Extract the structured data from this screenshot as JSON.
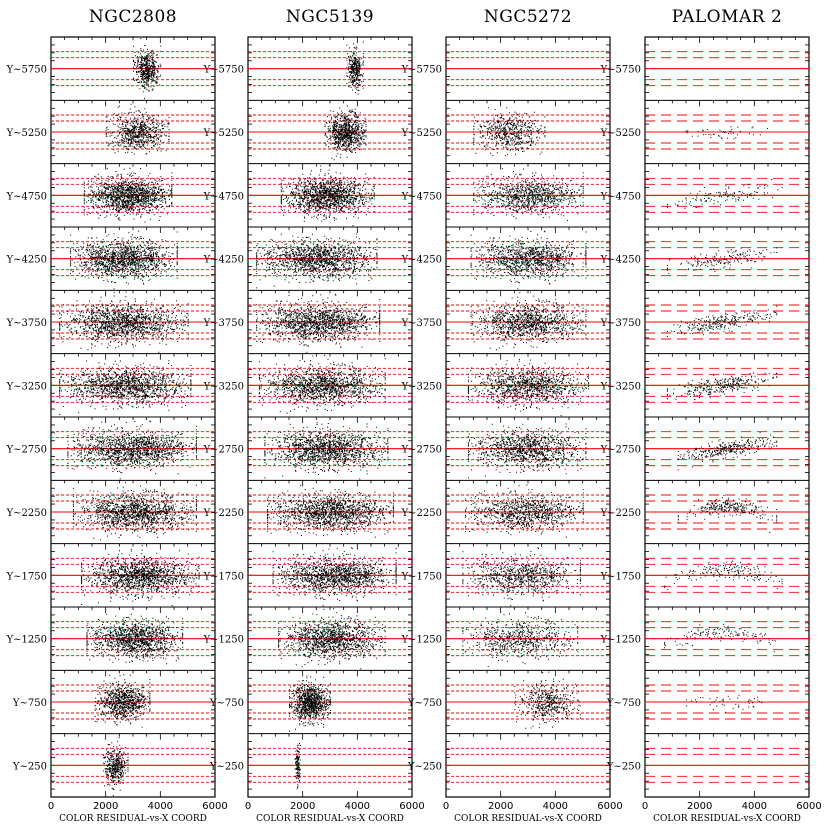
{
  "chart_data": {
    "type": "scatter",
    "description": "Color residual vs X coordinate, in bins of Y coordinate, for four globular clusters",
    "panels": [
      {
        "title": "NGC2808",
        "rows": [
          {
            "y_label": "Y~5750",
            "xmin": 3000,
            "xmax": 4000,
            "density": 0.35,
            "curve": "flat"
          },
          {
            "y_label": "Y~5250",
            "xmin": 2000,
            "xmax": 4300,
            "density": 0.5,
            "curve": "flat"
          },
          {
            "y_label": "Y~4750",
            "xmin": 1200,
            "xmax": 4400,
            "density": 1,
            "curve": "flat"
          },
          {
            "y_label": "Y~4250",
            "xmin": 700,
            "xmax": 4600,
            "density": 1,
            "curve": "flat"
          },
          {
            "y_label": "Y~3750",
            "xmin": 300,
            "xmax": 5000,
            "density": 1,
            "curve": "flat"
          },
          {
            "y_label": "Y~3250",
            "xmin": 300,
            "xmax": 5100,
            "density": 1,
            "curve": "flat"
          },
          {
            "y_label": "Y~2750",
            "xmin": 600,
            "xmax": 5300,
            "density": 1,
            "curve": "flat"
          },
          {
            "y_label": "Y~2250",
            "xmin": 800,
            "xmax": 5300,
            "density": 1,
            "curve": "flat"
          },
          {
            "y_label": "Y~1750",
            "xmin": 1100,
            "xmax": 5400,
            "density": 1,
            "curve": "flat"
          },
          {
            "y_label": "Y~1250",
            "xmin": 1300,
            "xmax": 4800,
            "density": 0.9,
            "curve": "flat"
          },
          {
            "y_label": "Y~750",
            "xmin": 1600,
            "xmax": 3600,
            "density": 0.6,
            "curve": "flat"
          },
          {
            "y_label": "Y~250",
            "xmin": 1900,
            "xmax": 2800,
            "density": 0.3,
            "curve": "flat"
          }
        ]
      },
      {
        "title": "NGC5139",
        "rows": [
          {
            "y_label": "Y~5750",
            "xmin": 3600,
            "xmax": 4200,
            "density": 0.25,
            "curve": "flat"
          },
          {
            "y_label": "Y~5250",
            "xmin": 2800,
            "xmax": 4300,
            "density": 0.6,
            "curve": "flat"
          },
          {
            "y_label": "Y~4750",
            "xmin": 1200,
            "xmax": 4600,
            "density": 1,
            "curve": "flat"
          },
          {
            "y_label": "Y~4250",
            "xmin": 300,
            "xmax": 4700,
            "density": 1,
            "curve": "flat"
          },
          {
            "y_label": "Y~3750",
            "xmin": 300,
            "xmax": 4800,
            "density": 1,
            "curve": "flat"
          },
          {
            "y_label": "Y~3250",
            "xmin": 400,
            "xmax": 5000,
            "density": 1,
            "curve": "flat"
          },
          {
            "y_label": "Y~2750",
            "xmin": 600,
            "xmax": 5100,
            "density": 1,
            "curve": "flat"
          },
          {
            "y_label": "Y~2250",
            "xmin": 700,
            "xmax": 5300,
            "density": 1,
            "curve": "flat"
          },
          {
            "y_label": "Y~1750",
            "xmin": 900,
            "xmax": 5400,
            "density": 1,
            "curve": "flat"
          },
          {
            "y_label": "Y~1250",
            "xmin": 1100,
            "xmax": 5000,
            "density": 0.9,
            "curve": "flat"
          },
          {
            "y_label": "Y~750",
            "xmin": 1500,
            "xmax": 3000,
            "density": 0.7,
            "curve": "flat"
          },
          {
            "y_label": "Y~250",
            "xmin": 1700,
            "xmax": 1900,
            "density": 0.1,
            "curve": "flat"
          }
        ]
      },
      {
        "title": "NGC5272",
        "rows": [
          {
            "y_label": "Y~5750",
            "xmin": 0,
            "xmax": 0,
            "density": 0,
            "curve": "flat"
          },
          {
            "y_label": "Y~5250",
            "xmin": 1000,
            "xmax": 3600,
            "density": 0.4,
            "curve": "flat"
          },
          {
            "y_label": "Y~4750",
            "xmin": 1000,
            "xmax": 5000,
            "density": 0.7,
            "curve": "flat"
          },
          {
            "y_label": "Y~4250",
            "xmin": 900,
            "xmax": 5100,
            "density": 0.8,
            "curve": "flat"
          },
          {
            "y_label": "Y~3750",
            "xmin": 900,
            "xmax": 5100,
            "density": 0.8,
            "curve": "flat"
          },
          {
            "y_label": "Y~3250",
            "xmin": 800,
            "xmax": 5200,
            "density": 0.8,
            "curve": "flat"
          },
          {
            "y_label": "Y~2750",
            "xmin": 800,
            "xmax": 5100,
            "density": 0.8,
            "curve": "flat"
          },
          {
            "y_label": "Y~2250",
            "xmin": 700,
            "xmax": 5000,
            "density": 0.7,
            "curve": "flat"
          },
          {
            "y_label": "Y~1750",
            "xmin": 600,
            "xmax": 4900,
            "density": 0.6,
            "curve": "flat"
          },
          {
            "y_label": "Y~1250",
            "xmin": 600,
            "xmax": 4800,
            "density": 0.5,
            "curve": "flat"
          },
          {
            "y_label": "Y~750",
            "xmin": 2500,
            "xmax": 4900,
            "density": 0.35,
            "curve": "flat"
          },
          {
            "y_label": "Y~250",
            "xmin": 0,
            "xmax": 0,
            "density": 0,
            "curve": "flat"
          }
        ]
      },
      {
        "title": "PALOMAR 2",
        "rows": [
          {
            "y_label": "Y~5750",
            "xmin": 0,
            "xmax": 0,
            "density": 0,
            "curve": "flat"
          },
          {
            "y_label": "Y~5250",
            "xmin": 1000,
            "xmax": 4500,
            "density": 0.05,
            "curve": "flat"
          },
          {
            "y_label": "Y~4750",
            "xmin": 800,
            "xmax": 5000,
            "density": 0.15,
            "curve": "rise"
          },
          {
            "y_label": "Y~4250",
            "xmin": 800,
            "xmax": 4800,
            "density": 0.2,
            "curve": "rise"
          },
          {
            "y_label": "Y~3750",
            "xmin": 800,
            "xmax": 4800,
            "density": 0.3,
            "curve": "rise"
          },
          {
            "y_label": "Y~3250",
            "xmin": 800,
            "xmax": 4800,
            "density": 0.35,
            "curve": "rise"
          },
          {
            "y_label": "Y~2750",
            "xmin": 1200,
            "xmax": 4800,
            "density": 0.35,
            "curve": "rise"
          },
          {
            "y_label": "Y~2250",
            "xmin": 1200,
            "xmax": 4800,
            "density": 0.3,
            "curve": "arch"
          },
          {
            "y_label": "Y~1750",
            "xmin": 700,
            "xmax": 5000,
            "density": 0.2,
            "curve": "arch"
          },
          {
            "y_label": "Y~1250",
            "xmin": 700,
            "xmax": 5000,
            "density": 0.15,
            "curve": "arch"
          },
          {
            "y_label": "Y~750",
            "xmin": 1500,
            "xmax": 4500,
            "density": 0.05,
            "curve": "flat"
          },
          {
            "y_label": "Y~250",
            "xmin": 0,
            "xmax": 0,
            "density": 0,
            "curve": "flat"
          }
        ]
      }
    ],
    "x_ticks": [
      "0",
      "2000",
      "4000",
      "6000"
    ],
    "xlabel": "COLOR RESIDUAL-vs-X COORD",
    "xlim": [
      0,
      6000
    ],
    "colors": {
      "points": "#000000",
      "centerline": "#ff0000",
      "dashline": "#ff0000",
      "frame": "#000000"
    }
  }
}
